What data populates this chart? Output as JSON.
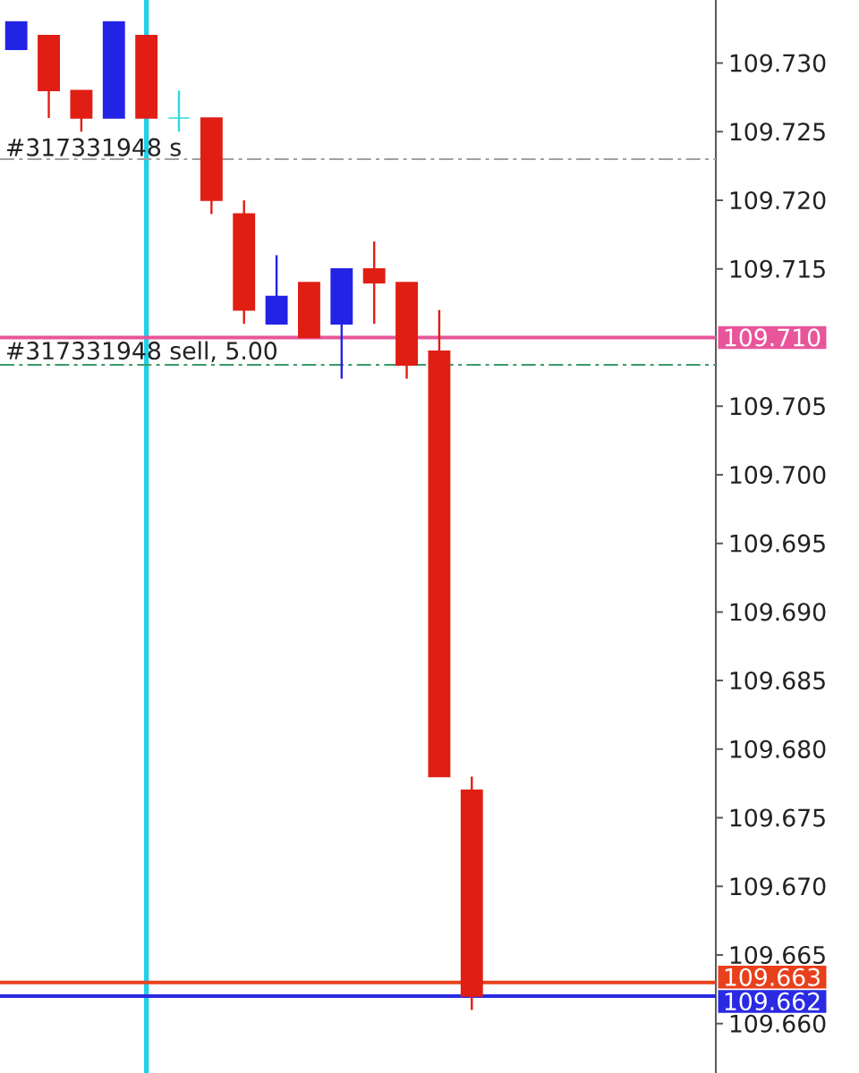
{
  "chart_data": {
    "type": "candlestick",
    "categories": [
      null,
      null,
      null,
      null,
      null,
      null,
      null,
      null,
      null,
      null,
      null,
      null,
      null,
      null,
      null,
      null,
      null,
      null,
      null,
      null,
      null,
      null
    ],
    "ohlc": [
      [
        109.731,
        109.733,
        109.731,
        109.733
      ],
      [
        109.732,
        109.732,
        109.726,
        109.728
      ],
      [
        109.728,
        109.728,
        109.725,
        109.726
      ],
      [
        109.726,
        109.733,
        109.726,
        109.733
      ],
      [
        109.732,
        109.732,
        109.726,
        109.726
      ],
      [
        109.726,
        109.728,
        109.725,
        109.726
      ],
      [
        109.726,
        109.726,
        109.719,
        109.72
      ],
      [
        109.719,
        109.72,
        109.711,
        109.712
      ],
      [
        109.711,
        109.716,
        109.711,
        109.713
      ],
      [
        109.714,
        109.714,
        109.71,
        109.71
      ],
      [
        109.711,
        109.715,
        109.707,
        109.715
      ],
      [
        109.715,
        109.717,
        109.711,
        109.714
      ],
      [
        109.714,
        109.714,
        109.707,
        109.708
      ],
      [
        109.709,
        109.712,
        109.678,
        109.678
      ],
      [
        109.677,
        109.678,
        109.661,
        109.662
      ],
      null,
      null,
      null,
      null,
      null,
      null,
      null
    ],
    "colors": [
      "#2323e6",
      "#e01e14",
      "#e01e14",
      "#2323e6",
      "#e01e14",
      "#30d8e0",
      "#e01e14",
      "#e01e14",
      "#2323e6",
      "#e01e14",
      "#2323e6",
      "#e01e14",
      "#e01e14",
      "#e01e14",
      "#e01e14",
      null,
      null,
      null,
      null,
      null,
      null,
      null
    ],
    "ylim": [
      109.6564,
      109.7346
    ],
    "yticks": [
      {
        "value": 109.66,
        "label": "109.660"
      },
      {
        "value": 109.665,
        "label": "109.665"
      },
      {
        "value": 109.67,
        "label": "109.670"
      },
      {
        "value": 109.675,
        "label": "109.675"
      },
      {
        "value": 109.68,
        "label": "109.680"
      },
      {
        "value": 109.685,
        "label": "109.685"
      },
      {
        "value": 109.69,
        "label": "109.690"
      },
      {
        "value": 109.695,
        "label": "109.695"
      },
      {
        "value": 109.7,
        "label": "109.700"
      },
      {
        "value": 109.705,
        "label": "109.705"
      },
      {
        "value": 109.715,
        "label": "109.715"
      },
      {
        "value": 109.72,
        "label": "109.720"
      },
      {
        "value": 109.725,
        "label": "109.725"
      },
      {
        "value": 109.73,
        "label": "109.730"
      }
    ],
    "ref_lines": [
      {
        "axis": "y",
        "value": 109.723,
        "label": "#317331948 s",
        "color": "#a0a0a0",
        "line_style": "dashdot"
      },
      {
        "axis": "y",
        "value": 109.708,
        "label": "#317331948 sell, 5.00",
        "color": "#3c9c6c",
        "line_style": "dashdot"
      },
      {
        "axis": "y",
        "value": 109.71,
        "label": "109.710",
        "color": "#e8559a",
        "line_style": "solid"
      },
      {
        "axis": "y",
        "value": 109.663,
        "label": "109.663",
        "color": "#e8401c",
        "line_style": "solid"
      },
      {
        "axis": "y",
        "value": 109.662,
        "label": "109.662",
        "color": "#2a2ae4",
        "line_style": "solid"
      }
    ],
    "tick_labels": "y"
  }
}
